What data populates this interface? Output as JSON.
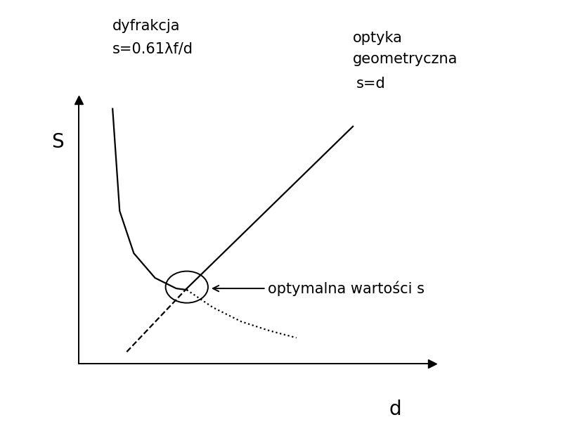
{
  "chart_data": {
    "type": "line",
    "xlabel": "d",
    "ylabel": "S",
    "xlim": [
      0,
      10
    ],
    "ylim": [
      0,
      7.5
    ],
    "xticks": [],
    "yticks": [],
    "tick_labels": false,
    "series": [
      {
        "x": [
          0.96,
          1.16,
          1.56,
          2.16,
          2.76,
          3.06
        ],
        "values": [
          7.24,
          4.34,
          3.14,
          2.44,
          2.14,
          2.1
        ],
        "color": "#000000",
        "line_style": "solid"
      },
      {
        "x": [
          3.06,
          3.8,
          4.6,
          5.4,
          6.16
        ],
        "values": [
          2.1,
          1.6,
          1.2,
          0.94,
          0.74
        ],
        "color": "#000000",
        "line_style": "dotted"
      },
      {
        "x": [
          3.06,
          7.76
        ],
        "values": [
          2.14,
          6.74
        ],
        "color": "#000000",
        "line_style": "solid"
      },
      {
        "x": [
          1.36,
          3.06
        ],
        "values": [
          0.34,
          2.14
        ],
        "color": "#000000",
        "line_style": "dashed"
      }
    ],
    "annotations": [
      "dyfrakcja",
      "s=0.61λf/d",
      "optyka",
      "geometryczna",
      "s=d",
      "optymalna wartości s"
    ]
  }
}
